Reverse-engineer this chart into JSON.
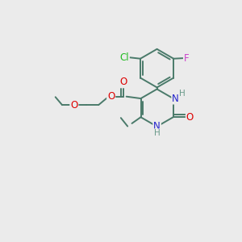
{
  "bg_color": "#ebebeb",
  "bond_color": "#4a7a6a",
  "bond_width": 1.4,
  "atoms": {
    "Cl": {
      "color": "#22bb22",
      "fontsize": 8.5
    },
    "F": {
      "color": "#cc44cc",
      "fontsize": 8.5
    },
    "O": {
      "color": "#dd0000",
      "fontsize": 8.5
    },
    "N": {
      "color": "#2222cc",
      "fontsize": 8.5
    },
    "H": {
      "color": "#6a9a8a",
      "fontsize": 7.5
    }
  },
  "xlim": [
    0,
    10
  ],
  "ylim": [
    0,
    10
  ]
}
